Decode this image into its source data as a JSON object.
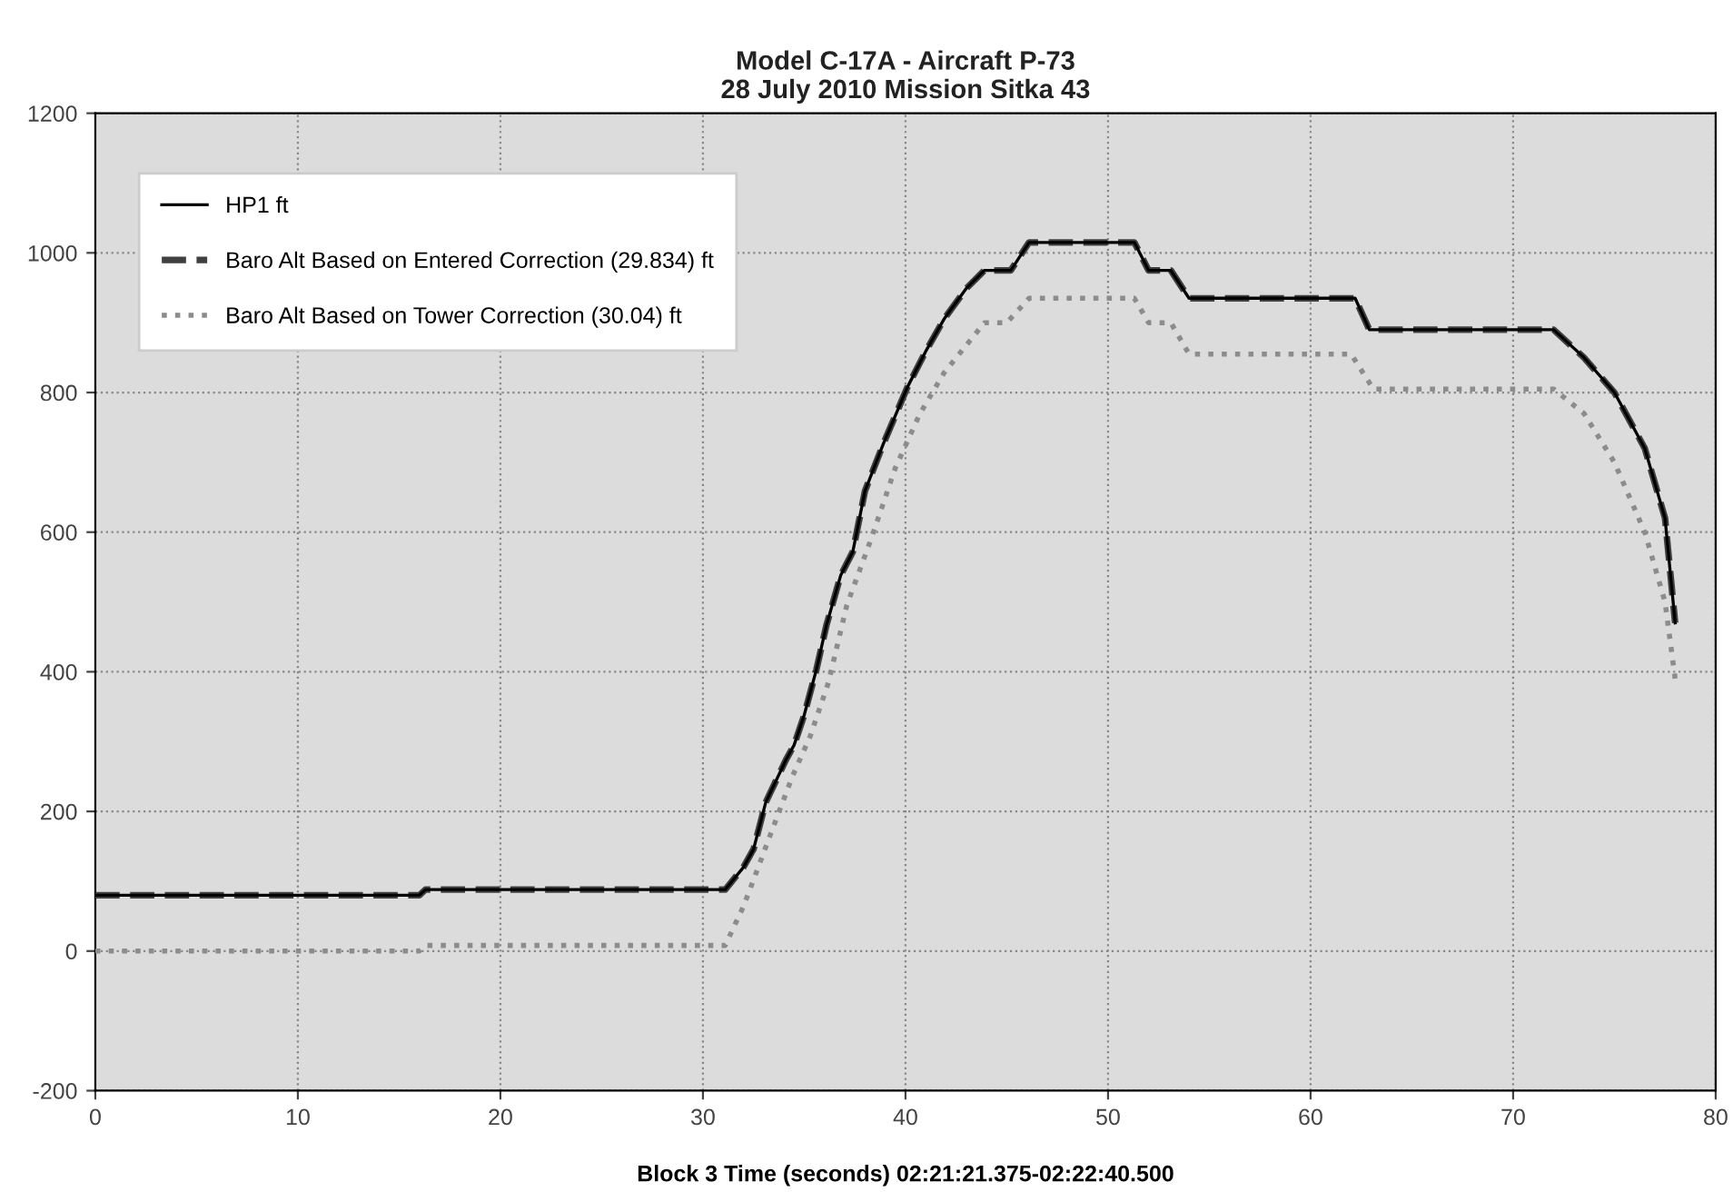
{
  "chart_data": {
    "type": "line",
    "title": "Model C-17A - Aircraft P-73\n28 July 2010 Mission Sitka 43",
    "xlabel": "Block 3 Time (seconds) 02:21:21.375-02:22:40.500",
    "xlim": [
      0,
      80
    ],
    "xticks": [
      0,
      10,
      20,
      30,
      40,
      50,
      60,
      70,
      80
    ],
    "ylim": [
      -200,
      1200
    ],
    "yticks": [
      -200,
      0,
      200,
      400,
      600,
      800,
      1000,
      1200
    ],
    "grid": true,
    "legend": "top left",
    "marker": "none",
    "series": [
      {
        "name": "HP1 ft",
        "color": "#000000",
        "line_style": "solid",
        "x": [
          0,
          16,
          16.3,
          31.1,
          32.0,
          32.5,
          33.1,
          34.1,
          34.5,
          35.0,
          35.6,
          36.1,
          36.8,
          37.4,
          38.0,
          38.9,
          40.1,
          41.0,
          41.9,
          43.0,
          43.9,
          45.2,
          46.1,
          51.3,
          52.0,
          53.1,
          54.0,
          62.2,
          62.9,
          72.0,
          73.5,
          75.0,
          76.5,
          77.5,
          78.0
        ],
        "values": [
          80,
          80,
          88,
          88,
          120,
          146,
          213,
          274,
          295,
          338,
          403,
          467,
          538,
          572,
          659,
          726,
          808,
          859,
          905,
          949,
          975,
          975,
          1015,
          1015,
          975,
          975,
          935,
          935,
          890,
          890,
          850,
          800,
          720,
          620,
          470
        ]
      },
      {
        "name": "Baro Alt Based on Entered Correction (29.834) ft",
        "color": "#404040",
        "line_style": "dashed",
        "x": [
          0,
          16,
          16.3,
          31.1,
          32.0,
          32.5,
          33.1,
          34.1,
          34.5,
          35.0,
          35.6,
          36.1,
          36.8,
          37.4,
          38.0,
          38.9,
          40.1,
          41.0,
          41.9,
          43.0,
          43.9,
          45.2,
          46.1,
          51.3,
          52.0,
          53.1,
          54.0,
          62.2,
          62.9,
          72.0,
          73.5,
          75.0,
          76.5,
          77.5,
          78.0
        ],
        "values": [
          80,
          80,
          88,
          88,
          120,
          146,
          213,
          274,
          295,
          338,
          403,
          467,
          538,
          572,
          659,
          726,
          808,
          859,
          905,
          949,
          975,
          975,
          1015,
          1015,
          975,
          975,
          935,
          935,
          890,
          890,
          850,
          800,
          720,
          620,
          470
        ]
      },
      {
        "name": "Baro Alt Based on Tower Correction (30.04) ft",
        "color": "#8c8c8c",
        "line_style": "dotted",
        "x": [
          0,
          16,
          16.3,
          31.1,
          32.0,
          32.6,
          33.4,
          34.4,
          35.3,
          36.2,
          37.1,
          38.3,
          39.5,
          40.7,
          41.9,
          43.9,
          45.0,
          46.1,
          51.3,
          52.0,
          53.1,
          54.0,
          62.0,
          63.1,
          72.0,
          73.5,
          75.0,
          76.5,
          77.5,
          78.0
        ],
        "values": [
          0,
          0,
          8,
          8,
          64,
          110,
          172,
          249,
          308,
          385,
          495,
          590,
          692,
          769,
          828,
          900,
          900,
          935,
          935,
          900,
          900,
          855,
          855,
          805,
          805,
          770,
          700,
          600,
          500,
          390
        ]
      }
    ]
  }
}
